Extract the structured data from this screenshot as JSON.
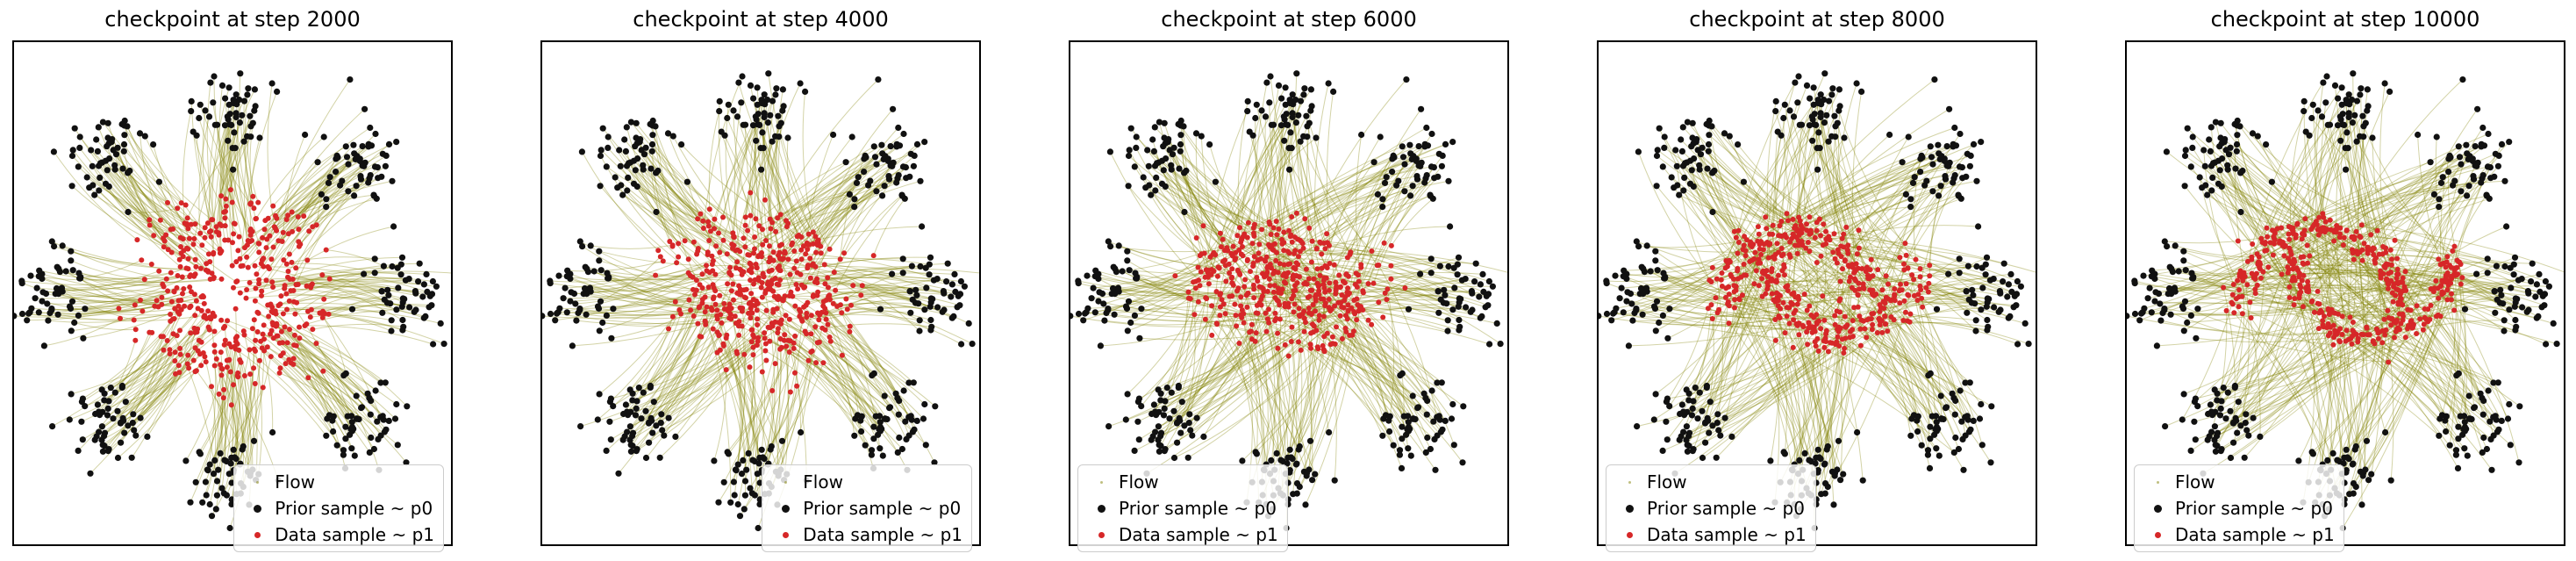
{
  "colors": {
    "flow": "#808000",
    "prior": "#111111",
    "data": "#d62728"
  },
  "legend": {
    "flow_label": "Flow",
    "prior_label": "Prior sample ~ p0",
    "data_label": "Data sample ~ p1"
  },
  "panels": [
    {
      "title": "checkpoint at step 2000"
    },
    {
      "title": "checkpoint at step 4000"
    },
    {
      "title": "checkpoint at step 6000"
    },
    {
      "title": "checkpoint at step 8000"
    },
    {
      "title": "checkpoint at step 10000"
    }
  ],
  "chart_data": [
    {
      "type": "scatter",
      "title": "checkpoint at step 2000",
      "step": 2000,
      "xlim": [
        -5.5,
        5.5
      ],
      "ylim": [
        -6.2,
        6.2
      ],
      "grid": false,
      "legend_position": "lower-right",
      "series": [
        {
          "name": "Flow",
          "description_kind": "trajectories"
        },
        {
          "name": "Prior sample ~ p0",
          "modes": [
            [
              0.0,
              4.5
            ],
            [
              3.2,
              3.2
            ],
            [
              4.5,
              0.0
            ],
            [
              3.2,
              -3.2
            ],
            [
              0.0,
              -4.5
            ],
            [
              -3.2,
              -3.2
            ],
            [
              -4.5,
              0.0
            ],
            [
              -3.2,
              3.2
            ]
          ],
          "mode_std": 0.55
        },
        {
          "name": "Data sample ~ p1",
          "shape": "two moons",
          "fit": 0.2
        }
      ]
    },
    {
      "type": "scatter",
      "title": "checkpoint at step 4000",
      "step": 4000,
      "xlim": [
        -5.5,
        5.5
      ],
      "ylim": [
        -6.2,
        6.2
      ],
      "grid": false,
      "legend_position": "lower-right",
      "series": [
        {
          "name": "Flow",
          "description_kind": "trajectories"
        },
        {
          "name": "Prior sample ~ p0",
          "modes": [
            [
              0.0,
              4.5
            ],
            [
              3.2,
              3.2
            ],
            [
              4.5,
              0.0
            ],
            [
              3.2,
              -3.2
            ],
            [
              0.0,
              -4.5
            ],
            [
              -3.2,
              -3.2
            ],
            [
              -4.5,
              0.0
            ],
            [
              -3.2,
              3.2
            ]
          ],
          "mode_std": 0.55
        },
        {
          "name": "Data sample ~ p1",
          "shape": "two moons",
          "fit": 0.45
        }
      ]
    },
    {
      "type": "scatter",
      "title": "checkpoint at step 6000",
      "step": 6000,
      "xlim": [
        -5.5,
        5.5
      ],
      "ylim": [
        -6.2,
        6.2
      ],
      "grid": false,
      "legend_position": "lower-left",
      "series": [
        {
          "name": "Flow",
          "description_kind": "trajectories"
        },
        {
          "name": "Prior sample ~ p0",
          "modes": [
            [
              0.0,
              4.5
            ],
            [
              3.2,
              3.2
            ],
            [
              4.5,
              0.0
            ],
            [
              3.2,
              -3.2
            ],
            [
              0.0,
              -4.5
            ],
            [
              -3.2,
              -3.2
            ],
            [
              -4.5,
              0.0
            ],
            [
              -3.2,
              3.2
            ]
          ],
          "mode_std": 0.55
        },
        {
          "name": "Data sample ~ p1",
          "shape": "two moons",
          "fit": 0.7
        }
      ]
    },
    {
      "type": "scatter",
      "title": "checkpoint at step 8000",
      "step": 8000,
      "xlim": [
        -5.5,
        5.5
      ],
      "ylim": [
        -6.2,
        6.2
      ],
      "grid": false,
      "legend_position": "lower-left",
      "series": [
        {
          "name": "Flow",
          "description_kind": "trajectories"
        },
        {
          "name": "Prior sample ~ p0",
          "modes": [
            [
              0.0,
              4.5
            ],
            [
              3.2,
              3.2
            ],
            [
              4.5,
              0.0
            ],
            [
              3.2,
              -3.2
            ],
            [
              0.0,
              -4.5
            ],
            [
              -3.2,
              -3.2
            ],
            [
              -4.5,
              0.0
            ],
            [
              -3.2,
              3.2
            ]
          ],
          "mode_std": 0.55
        },
        {
          "name": "Data sample ~ p1",
          "shape": "two moons",
          "fit": 0.85
        }
      ]
    },
    {
      "type": "scatter",
      "title": "checkpoint at step 10000",
      "step": 10000,
      "xlim": [
        -5.5,
        5.5
      ],
      "ylim": [
        -6.2,
        6.2
      ],
      "grid": false,
      "legend_position": "lower-left",
      "series": [
        {
          "name": "Flow",
          "description_kind": "trajectories"
        },
        {
          "name": "Prior sample ~ p0",
          "modes": [
            [
              0.0,
              4.5
            ],
            [
              3.2,
              3.2
            ],
            [
              4.5,
              0.0
            ],
            [
              3.2,
              -3.2
            ],
            [
              0.0,
              -4.5
            ],
            [
              -3.2,
              -3.2
            ],
            [
              -4.5,
              0.0
            ],
            [
              -3.2,
              3.2
            ]
          ],
          "mode_std": 0.55
        },
        {
          "name": "Data sample ~ p1",
          "shape": "two moons",
          "fit": 0.95
        }
      ]
    }
  ]
}
